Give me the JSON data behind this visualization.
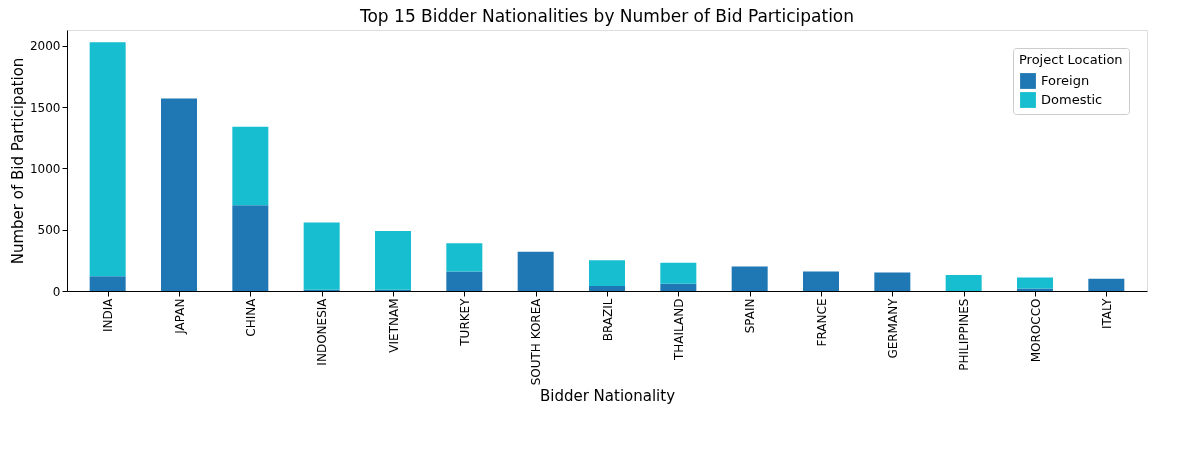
{
  "chart_data": {
    "type": "bar",
    "title": "Top 15 Bidder Nationalities by Number of Bid Participation",
    "xlabel": "Bidder Nationality",
    "ylabel": "Number of Bid Participation",
    "legend_title": "Project Location",
    "categories": [
      "INDIA",
      "JAPAN",
      "CHINA",
      "INDONESIA",
      "VIETNAM",
      "TURKEY",
      "SOUTH KOREA",
      "BRAZIL",
      "THAILAND",
      "SPAIN",
      "FRANCE",
      "GERMANY",
      "PHILIPPINES",
      "MOROCCO",
      "ITALY"
    ],
    "series": [
      {
        "name": "Foreign",
        "color": "#1f77b4",
        "values": [
          120,
          1570,
          700,
          10,
          10,
          160,
          320,
          40,
          60,
          200,
          160,
          150,
          0,
          20,
          100
        ]
      },
      {
        "name": "Domestic",
        "color": "#17becf",
        "values": [
          1910,
          0,
          640,
          550,
          480,
          230,
          0,
          210,
          170,
          0,
          0,
          0,
          130,
          90,
          0
        ]
      }
    ],
    "stacked": true,
    "ylim": [
      0,
      2130
    ],
    "yticks": [
      0,
      500,
      1000,
      1500,
      2000
    ],
    "grid": false,
    "legend": "top right"
  }
}
